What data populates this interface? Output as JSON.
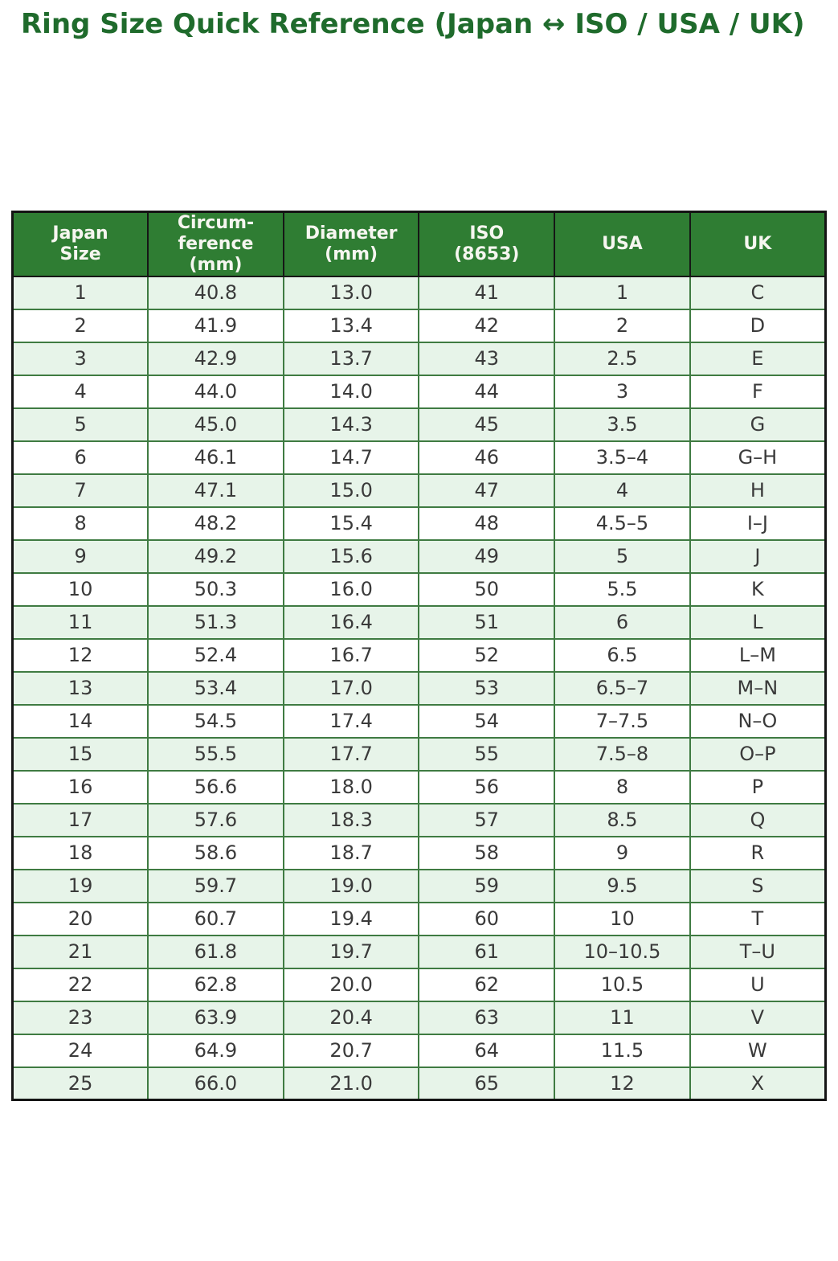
{
  "title": "Ring Size Quick Reference (Japan ↔ ISO / USA / UK)",
  "colors": {
    "title_text": "#1f6b2c",
    "header_bg": "#2f7d33",
    "header_text": "#f6f6f0",
    "row_bg": "#ffffff",
    "row_alt_bg": "#e7f4e9",
    "cell_text": "#3a3a3a",
    "inner_border": "#3f7b42",
    "outer_border": "#141414"
  },
  "chart_data": {
    "type": "table",
    "title": "Ring Size Quick Reference (Japan ↔ ISO / USA / UK)",
    "columns": [
      "Japan\nSize",
      "Circum-\nference\n(mm)",
      "Diameter\n(mm)",
      "ISO\n(8653)",
      "USA",
      "UK"
    ],
    "rows": [
      [
        "1",
        "40.8",
        "13.0",
        "41",
        "1",
        "C"
      ],
      [
        "2",
        "41.9",
        "13.4",
        "42",
        "2",
        "D"
      ],
      [
        "3",
        "42.9",
        "13.7",
        "43",
        "2.5",
        "E"
      ],
      [
        "4",
        "44.0",
        "14.0",
        "44",
        "3",
        "F"
      ],
      [
        "5",
        "45.0",
        "14.3",
        "45",
        "3.5",
        "G"
      ],
      [
        "6",
        "46.1",
        "14.7",
        "46",
        "3.5–4",
        "G–H"
      ],
      [
        "7",
        "47.1",
        "15.0",
        "47",
        "4",
        "H"
      ],
      [
        "8",
        "48.2",
        "15.4",
        "48",
        "4.5–5",
        "I–J"
      ],
      [
        "9",
        "49.2",
        "15.6",
        "49",
        "5",
        "J"
      ],
      [
        "10",
        "50.3",
        "16.0",
        "50",
        "5.5",
        "K"
      ],
      [
        "11",
        "51.3",
        "16.4",
        "51",
        "6",
        "L"
      ],
      [
        "12",
        "52.4",
        "16.7",
        "52",
        "6.5",
        "L–M"
      ],
      [
        "13",
        "53.4",
        "17.0",
        "53",
        "6.5–7",
        "M–N"
      ],
      [
        "14",
        "54.5",
        "17.4",
        "54",
        "7–7.5",
        "N–O"
      ],
      [
        "15",
        "55.5",
        "17.7",
        "55",
        "7.5–8",
        "O–P"
      ],
      [
        "16",
        "56.6",
        "18.0",
        "56",
        "8",
        "P"
      ],
      [
        "17",
        "57.6",
        "18.3",
        "57",
        "8.5",
        "Q"
      ],
      [
        "18",
        "58.6",
        "18.7",
        "58",
        "9",
        "R"
      ],
      [
        "19",
        "59.7",
        "19.0",
        "59",
        "9.5",
        "S"
      ],
      [
        "20",
        "60.7",
        "19.4",
        "60",
        "10",
        "T"
      ],
      [
        "21",
        "61.8",
        "19.7",
        "61",
        "10–10.5",
        "T–U"
      ],
      [
        "22",
        "62.8",
        "20.0",
        "62",
        "10.5",
        "U"
      ],
      [
        "23",
        "63.9",
        "20.4",
        "63",
        "11",
        "V"
      ],
      [
        "24",
        "64.9",
        "20.7",
        "64",
        "11.5",
        "W"
      ],
      [
        "25",
        "66.0",
        "21.0",
        "65",
        "12",
        "X"
      ]
    ]
  }
}
